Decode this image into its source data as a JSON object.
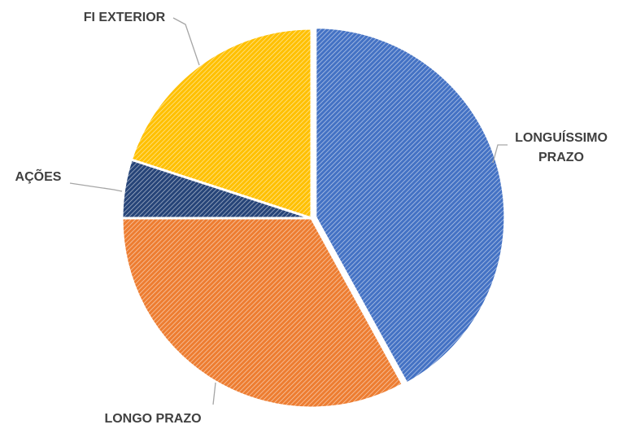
{
  "chart_data": {
    "type": "pie",
    "categories": [
      "LONGUÍSSIMO PRAZO",
      "LONGO PRAZO",
      "AÇÕES",
      "FI EXTERIOR"
    ],
    "values": [
      42,
      33,
      5,
      20
    ],
    "colors": [
      "#4472c4",
      "#ed7d31",
      "#264478",
      "#ffc000"
    ]
  }
}
